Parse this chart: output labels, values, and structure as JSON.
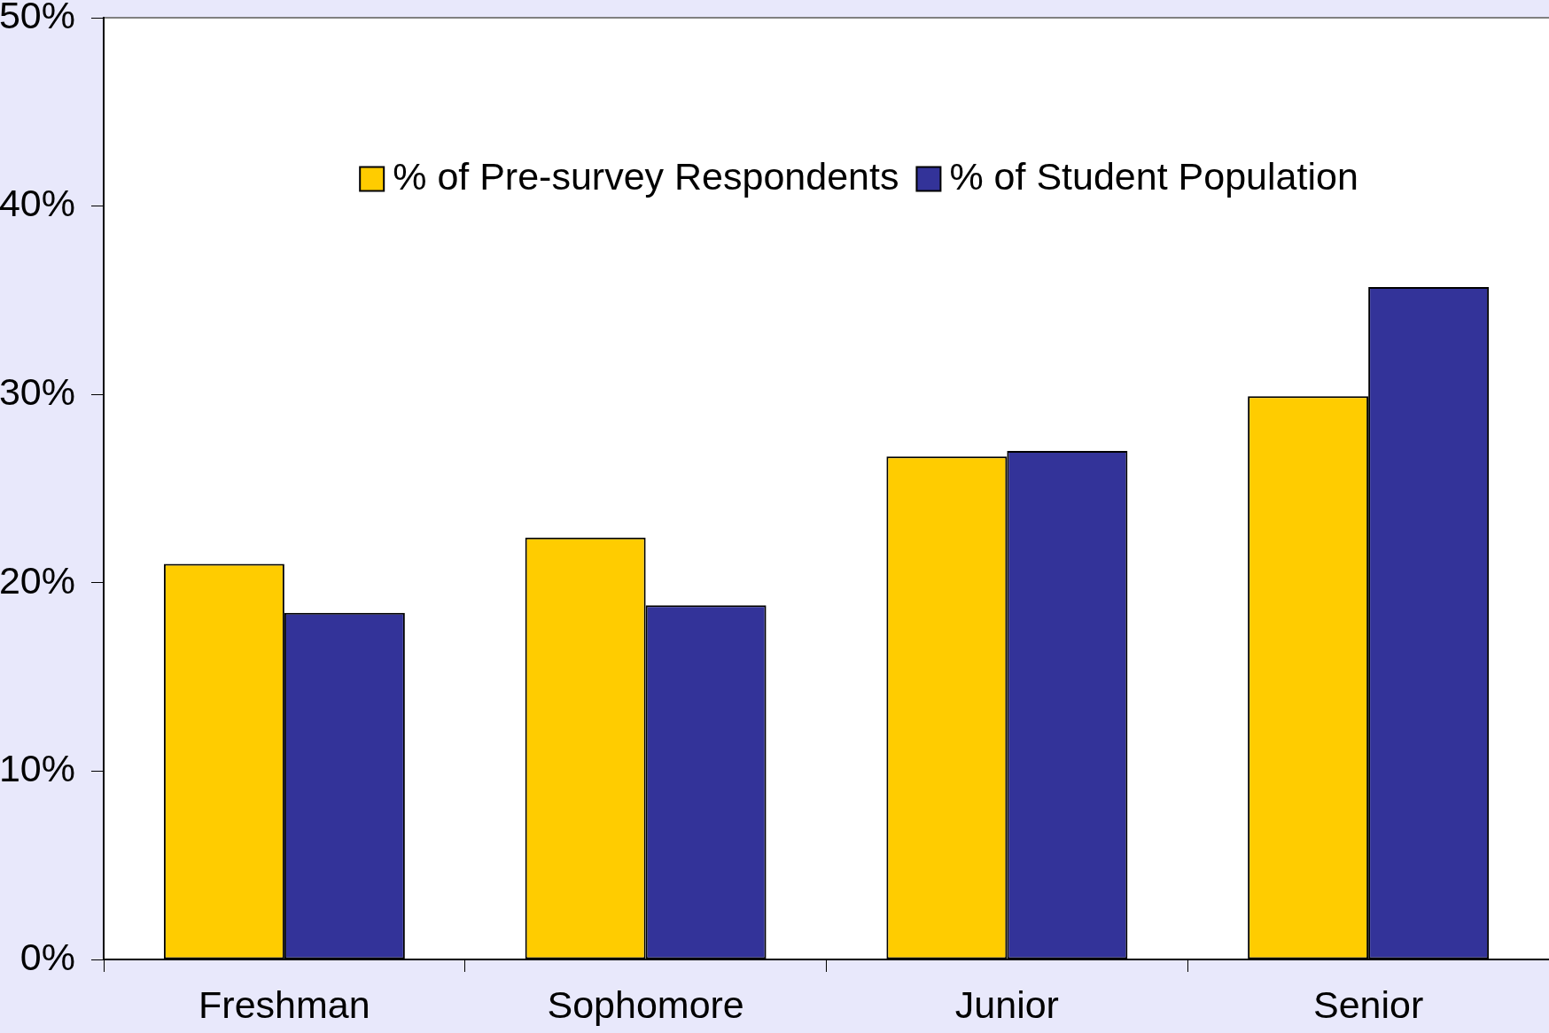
{
  "chart_data": {
    "type": "bar",
    "categories": [
      "Freshman",
      "Sophomore",
      "Junior",
      "Senior"
    ],
    "series": [
      {
        "name": "% of Pre-survey Respondents",
        "color": "#ffcc00",
        "values": [
          21.0,
          22.4,
          26.7,
          29.9
        ]
      },
      {
        "name": "% of Student Population",
        "color": "#333399",
        "values": [
          18.4,
          18.8,
          27.0,
          35.7
        ]
      }
    ],
    "ylim": [
      0,
      50
    ],
    "yticks": [
      {
        "value": 0,
        "label": "0%"
      },
      {
        "value": 10,
        "label": "10%"
      },
      {
        "value": 20,
        "label": "20%"
      },
      {
        "value": 30,
        "label": "30%"
      },
      {
        "value": 40,
        "label": "40%"
      },
      {
        "value": 50,
        "label": "50%"
      }
    ],
    "grid": false,
    "legend": "top"
  }
}
